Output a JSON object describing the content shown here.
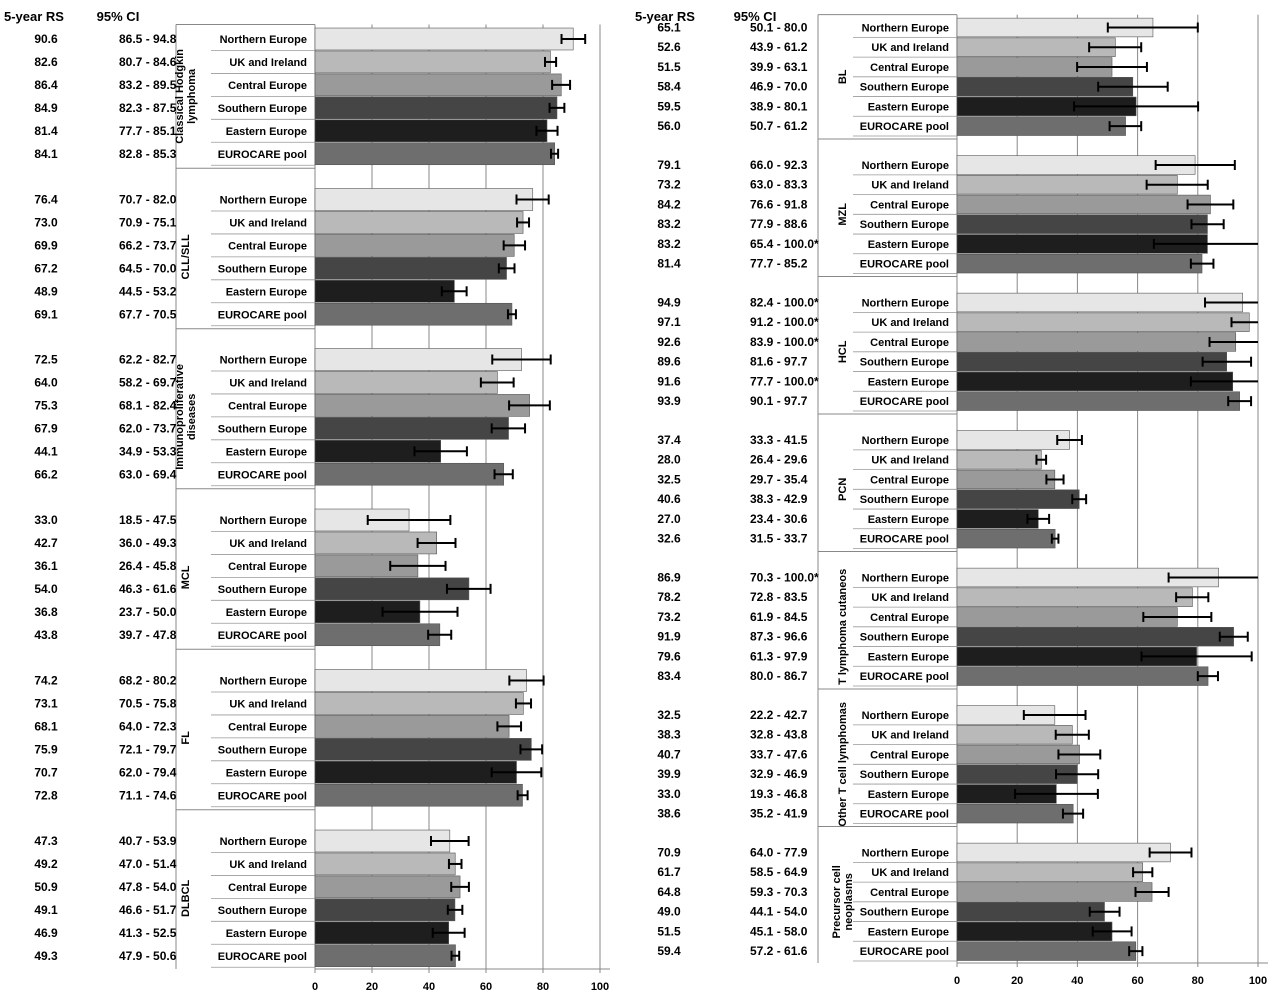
{
  "chart_data": {
    "type": "bar",
    "orientation": "horizontal",
    "headers": {
      "rs": "5-year RS",
      "ci": "95% CI"
    },
    "xlim": [
      0,
      100
    ],
    "xticks": [
      "0",
      "20",
      "40",
      "60",
      "80",
      "100"
    ],
    "regions": [
      "Northern Europe",
      "UK and Ireland",
      "Central Europe",
      "Southern Europe",
      "Eastern Europe",
      "EUROCARE pool"
    ],
    "colors": [
      "#e6e6e6",
      "#b9b9b9",
      "#9a9a9a",
      "#454545",
      "#1e1e1e",
      "#6e6e6e"
    ],
    "panels": [
      {
        "groups": [
          {
            "label": [
              "Classical Hodgkin",
              "lymphoma"
            ],
            "rows": [
              {
                "rs": 90.6,
                "lo": 86.5,
                "hi": 94.8,
                "ci_text": "86.5  -  94.8"
              },
              {
                "rs": 82.6,
                "lo": 80.7,
                "hi": 84.6,
                "ci_text": "80.7  -  84.6"
              },
              {
                "rs": 86.4,
                "lo": 83.2,
                "hi": 89.5,
                "ci_text": "83.2  -  89.5"
              },
              {
                "rs": 84.9,
                "lo": 82.3,
                "hi": 87.5,
                "ci_text": "82.3  -  87.5"
              },
              {
                "rs": 81.4,
                "lo": 77.7,
                "hi": 85.1,
                "ci_text": "77.7  -  85.1"
              },
              {
                "rs": 84.1,
                "lo": 82.8,
                "hi": 85.3,
                "ci_text": "82.8  -  85.3"
              }
            ]
          },
          {
            "label": [
              "CLL/SLL"
            ],
            "rows": [
              {
                "rs": 76.4,
                "lo": 70.7,
                "hi": 82.0,
                "ci_text": "70.7  -  82.0"
              },
              {
                "rs": 73.0,
                "lo": 70.9,
                "hi": 75.1,
                "ci_text": "70.9  -  75.1"
              },
              {
                "rs": 69.9,
                "lo": 66.2,
                "hi": 73.7,
                "ci_text": "66.2  -  73.7"
              },
              {
                "rs": 67.2,
                "lo": 64.5,
                "hi": 70.0,
                "ci_text": "64.5  -  70.0"
              },
              {
                "rs": 48.9,
                "lo": 44.5,
                "hi": 53.2,
                "ci_text": "44.5  -  53.2"
              },
              {
                "rs": 69.1,
                "lo": 67.7,
                "hi": 70.5,
                "ci_text": "67.7  -  70.5"
              }
            ]
          },
          {
            "label": [
              "Immunoproliferative",
              "diseases"
            ],
            "rows": [
              {
                "rs": 72.5,
                "lo": 62.2,
                "hi": 82.7,
                "ci_text": "62.2  -  82.7"
              },
              {
                "rs": 64.0,
                "lo": 58.2,
                "hi": 69.7,
                "ci_text": "58.2  -  69.7"
              },
              {
                "rs": 75.3,
                "lo": 68.1,
                "hi": 82.4,
                "ci_text": "68.1  -  82.4"
              },
              {
                "rs": 67.9,
                "lo": 62.0,
                "hi": 73.7,
                "ci_text": "62.0  -  73.7"
              },
              {
                "rs": 44.1,
                "lo": 34.9,
                "hi": 53.3,
                "ci_text": "34.9  -  53.3"
              },
              {
                "rs": 66.2,
                "lo": 63.0,
                "hi": 69.4,
                "ci_text": "63.0  -  69.4"
              }
            ]
          },
          {
            "label": [
              "MCL"
            ],
            "rows": [
              {
                "rs": 33.0,
                "lo": 18.5,
                "hi": 47.5,
                "ci_text": "18.5  -  47.5"
              },
              {
                "rs": 42.7,
                "lo": 36.0,
                "hi": 49.3,
                "ci_text": "36.0  -  49.3"
              },
              {
                "rs": 36.1,
                "lo": 26.4,
                "hi": 45.8,
                "ci_text": "26.4  -  45.8"
              },
              {
                "rs": 54.0,
                "lo": 46.3,
                "hi": 61.6,
                "ci_text": "46.3  -  61.6"
              },
              {
                "rs": 36.8,
                "lo": 23.7,
                "hi": 50.0,
                "ci_text": "23.7  -  50.0"
              },
              {
                "rs": 43.8,
                "lo": 39.7,
                "hi": 47.8,
                "ci_text": "39.7  -  47.8"
              }
            ]
          },
          {
            "label": [
              "FL"
            ],
            "rows": [
              {
                "rs": 74.2,
                "lo": 68.2,
                "hi": 80.2,
                "ci_text": "68.2  -  80.2"
              },
              {
                "rs": 73.1,
                "lo": 70.5,
                "hi": 75.8,
                "ci_text": "70.5  -  75.8"
              },
              {
                "rs": 68.1,
                "lo": 64.0,
                "hi": 72.3,
                "ci_text": "64.0  -  72.3"
              },
              {
                "rs": 75.9,
                "lo": 72.1,
                "hi": 79.7,
                "ci_text": "72.1  -  79.7"
              },
              {
                "rs": 70.7,
                "lo": 62.0,
                "hi": 79.4,
                "ci_text": "62.0  -  79.4"
              },
              {
                "rs": 72.8,
                "lo": 71.1,
                "hi": 74.6,
                "ci_text": "71.1  -  74.6"
              }
            ]
          },
          {
            "label": [
              "DLBCL"
            ],
            "rows": [
              {
                "rs": 47.3,
                "lo": 40.7,
                "hi": 53.9,
                "ci_text": "40.7  -  53.9"
              },
              {
                "rs": 49.2,
                "lo": 47.0,
                "hi": 51.4,
                "ci_text": "47.0  -  51.4"
              },
              {
                "rs": 50.9,
                "lo": 47.8,
                "hi": 54.0,
                "ci_text": "47.8  -  54.0"
              },
              {
                "rs": 49.1,
                "lo": 46.6,
                "hi": 51.7,
                "ci_text": "46.6  -  51.7"
              },
              {
                "rs": 46.9,
                "lo": 41.3,
                "hi": 52.5,
                "ci_text": "41.3  -  52.5"
              },
              {
                "rs": 49.3,
                "lo": 47.9,
                "hi": 50.6,
                "ci_text": "47.9  -  50.6"
              }
            ]
          }
        ]
      },
      {
        "groups": [
          {
            "label": [
              "BL"
            ],
            "rows": [
              {
                "rs": 65.1,
                "lo": 50.1,
                "hi": 80.0,
                "ci_text": "50.1  -  80.0"
              },
              {
                "rs": 52.6,
                "lo": 43.9,
                "hi": 61.2,
                "ci_text": "43.9  -  61.2"
              },
              {
                "rs": 51.5,
                "lo": 39.9,
                "hi": 63.1,
                "ci_text": "39.9  -  63.1"
              },
              {
                "rs": 58.4,
                "lo": 46.9,
                "hi": 70.0,
                "ci_text": "46.9  -  70.0"
              },
              {
                "rs": 59.5,
                "lo": 38.9,
                "hi": 80.1,
                "ci_text": "38.9  -  80.1"
              },
              {
                "rs": 56.0,
                "lo": 50.7,
                "hi": 61.2,
                "ci_text": "50.7  -  61.2"
              }
            ]
          },
          {
            "label": [
              "MZL"
            ],
            "rows": [
              {
                "rs": 79.1,
                "lo": 66.0,
                "hi": 92.3,
                "ci_text": "66.0  -  92.3"
              },
              {
                "rs": 73.2,
                "lo": 63.0,
                "hi": 83.3,
                "ci_text": "63.0  -  83.3"
              },
              {
                "rs": 84.2,
                "lo": 76.6,
                "hi": 91.8,
                "ci_text": "76.6  -  91.8"
              },
              {
                "rs": 83.2,
                "lo": 77.9,
                "hi": 88.6,
                "ci_text": "77.9  -  88.6"
              },
              {
                "rs": 83.2,
                "lo": 65.4,
                "hi": 100.0,
                "ci_text": "65.4  -  100.0*"
              },
              {
                "rs": 81.4,
                "lo": 77.7,
                "hi": 85.2,
                "ci_text": "77.7  -  85.2"
              }
            ]
          },
          {
            "label": [
              "HCL"
            ],
            "rows": [
              {
                "rs": 94.9,
                "lo": 82.4,
                "hi": 100.0,
                "ci_text": "82.4  -  100.0*"
              },
              {
                "rs": 97.1,
                "lo": 91.2,
                "hi": 100.0,
                "ci_text": "91.2  -  100.0*"
              },
              {
                "rs": 92.6,
                "lo": 83.9,
                "hi": 100.0,
                "ci_text": "83.9  -  100.0*"
              },
              {
                "rs": 89.6,
                "lo": 81.6,
                "hi": 97.7,
                "ci_text": "81.6  -  97.7"
              },
              {
                "rs": 91.6,
                "lo": 77.7,
                "hi": 100.0,
                "ci_text": "77.7  -  100.0*"
              },
              {
                "rs": 93.9,
                "lo": 90.1,
                "hi": 97.7,
                "ci_text": "90.1  -  97.7"
              }
            ]
          },
          {
            "label": [
              "PCN"
            ],
            "rows": [
              {
                "rs": 37.4,
                "lo": 33.3,
                "hi": 41.5,
                "ci_text": "33.3  -  41.5"
              },
              {
                "rs": 28.0,
                "lo": 26.4,
                "hi": 29.6,
                "ci_text": "26.4  -  29.6"
              },
              {
                "rs": 32.5,
                "lo": 29.7,
                "hi": 35.4,
                "ci_text": "29.7  -  35.4"
              },
              {
                "rs": 40.6,
                "lo": 38.3,
                "hi": 42.9,
                "ci_text": "38.3  -  42.9"
              },
              {
                "rs": 27.0,
                "lo": 23.4,
                "hi": 30.6,
                "ci_text": "23.4  -  30.6"
              },
              {
                "rs": 32.6,
                "lo": 31.5,
                "hi": 33.7,
                "ci_text": "31.5  -  33.7"
              }
            ]
          },
          {
            "label": [
              "T lymphoma cutaneos"
            ],
            "rows": [
              {
                "rs": 86.9,
                "lo": 70.3,
                "hi": 100.0,
                "ci_text": "70.3  -  100.0*"
              },
              {
                "rs": 78.2,
                "lo": 72.8,
                "hi": 83.5,
                "ci_text": "72.8  -  83.5"
              },
              {
                "rs": 73.2,
                "lo": 61.9,
                "hi": 84.5,
                "ci_text": "61.9  -  84.5"
              },
              {
                "rs": 91.9,
                "lo": 87.3,
                "hi": 96.6,
                "ci_text": "87.3  -  96.6"
              },
              {
                "rs": 79.6,
                "lo": 61.3,
                "hi": 97.9,
                "ci_text": "61.3  -  97.9"
              },
              {
                "rs": 83.4,
                "lo": 80.0,
                "hi": 86.7,
                "ci_text": "80.0  -  86.7"
              }
            ]
          },
          {
            "label": [
              "Other T cell lymphomas"
            ],
            "rows": [
              {
                "rs": 32.5,
                "lo": 22.2,
                "hi": 42.7,
                "ci_text": "22.2  -  42.7"
              },
              {
                "rs": 38.3,
                "lo": 32.8,
                "hi": 43.8,
                "ci_text": "32.8  -  43.8"
              },
              {
                "rs": 40.7,
                "lo": 33.7,
                "hi": 47.6,
                "ci_text": "33.7  -  47.6"
              },
              {
                "rs": 39.9,
                "lo": 32.9,
                "hi": 46.9,
                "ci_text": "32.9  -  46.9"
              },
              {
                "rs": 33.0,
                "lo": 19.3,
                "hi": 46.8,
                "ci_text": "19.3  -  46.8"
              },
              {
                "rs": 38.6,
                "lo": 35.2,
                "hi": 41.9,
                "ci_text": "35.2  -  41.9"
              }
            ]
          },
          {
            "label": [
              "Precursor cell",
              "neoplasms"
            ],
            "rows": [
              {
                "rs": 70.9,
                "lo": 64.0,
                "hi": 77.9,
                "ci_text": "64.0  -  77.9"
              },
              {
                "rs": 61.7,
                "lo": 58.5,
                "hi": 64.9,
                "ci_text": "58.5  -  64.9"
              },
              {
                "rs": 64.8,
                "lo": 59.3,
                "hi": 70.3,
                "ci_text": "59.3  -  70.3"
              },
              {
                "rs": 49.0,
                "lo": 44.1,
                "hi": 54.0,
                "ci_text": "44.1  -  54.0"
              },
              {
                "rs": 51.5,
                "lo": 45.1,
                "hi": 58.0,
                "ci_text": "45.1  -  58.0"
              },
              {
                "rs": 59.4,
                "lo": 57.2,
                "hi": 61.6,
                "ci_text": "57.2  -  61.6"
              }
            ]
          }
        ]
      }
    ]
  }
}
